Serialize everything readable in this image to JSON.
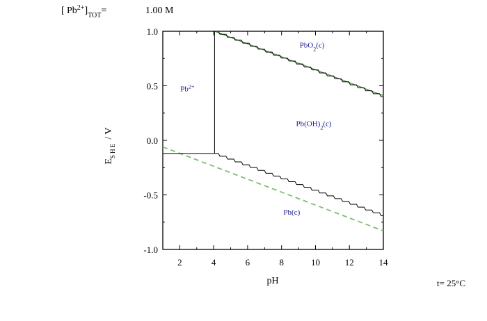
{
  "header": {
    "species": "Pb",
    "charge": "2+",
    "sub": "TOT",
    "eq": "=",
    "value": "1.00 M"
  },
  "temperature": "t= 25°C",
  "chart_data": {
    "type": "line",
    "title": "",
    "xlabel": "pH",
    "ylabel_main": "E",
    "ylabel_sub": "S H E",
    "ylabel_unit": "/ V",
    "xlim": [
      1,
      14
    ],
    "ylim": [
      -1.0,
      1.0
    ],
    "xticks": [
      2,
      4,
      6,
      8,
      10,
      12,
      14
    ],
    "yticks": [
      1.0,
      0.5,
      0.0,
      -0.5,
      -1.0
    ],
    "xtick_labels": [
      "2",
      "4",
      "6",
      "8",
      "10",
      "12",
      "14"
    ],
    "ytick_labels": [
      "1.0",
      "0.5",
      "0.0",
      "-0.5",
      "-1.0"
    ],
    "grid": false,
    "boundaries": [
      {
        "name": "Pb2+/Pb(c)",
        "x": [
          1,
          4.05
        ],
        "y": [
          -0.12,
          -0.12
        ]
      },
      {
        "name": "Pb2+/Pb(OH)2",
        "x": [
          4.05,
          4.05
        ],
        "y": [
          -0.12,
          1.0
        ]
      },
      {
        "name": "Pb(OH)2/Pb(c)",
        "x": [
          4.05,
          14
        ],
        "y": [
          -0.12,
          -0.69
        ]
      },
      {
        "name": "Pb(OH)2/PbO2",
        "x": [
          4.05,
          14
        ],
        "y": [
          1.0,
          0.4
        ]
      }
    ],
    "water_lines": [
      {
        "name": "H2O/H2",
        "x": [
          1,
          14
        ],
        "y": [
          -0.06,
          -0.83
        ],
        "color": "#7cbf6e",
        "style": "dashed"
      },
      {
        "name": "O2/H2O",
        "x": [
          4.05,
          14
        ],
        "y": [
          1.0,
          0.41
        ],
        "color": "#4a9a3c",
        "style": "solid"
      }
    ],
    "regions": [
      {
        "label_base": "Pb",
        "label_sup": "2+",
        "label_sub": "",
        "label_tail": "",
        "x": 2.45,
        "y": 0.45
      },
      {
        "label_base": "PbO",
        "label_sup": "",
        "label_sub": "2",
        "label_tail": "(c)",
        "x": 9.8,
        "y": 0.85
      },
      {
        "label_base": "Pb(OH)",
        "label_sup": "",
        "label_sub": "2",
        "label_tail": "(c)",
        "x": 9.9,
        "y": 0.13
      },
      {
        "label_base": "Pb(c)",
        "label_sup": "",
        "label_sub": "",
        "label_tail": "",
        "x": 8.6,
        "y": -0.68
      }
    ],
    "colors": {
      "boundary": "#000000",
      "water_dashed": "#7cbf6e",
      "water_solid": "#4a9a3c",
      "region_label": "#1a1a8c"
    }
  }
}
